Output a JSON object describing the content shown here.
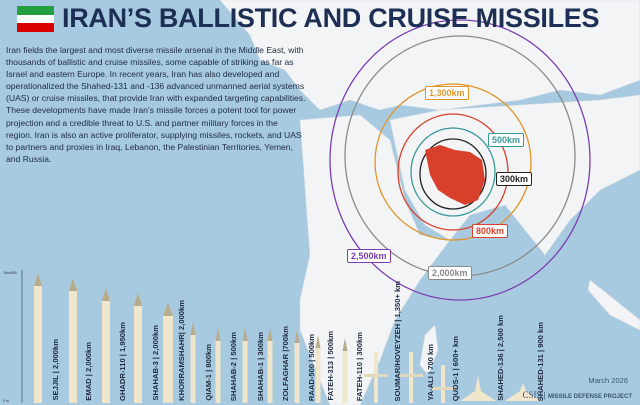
{
  "title": "IRAN’S BALLISTIC AND CRUISE MISSILES",
  "flag": {
    "colors": [
      "#239f40",
      "#ffffff",
      "#da0000"
    ]
  },
  "intro": "Iran fields the largest and most diverse missile arsenal in the Middle East, with thousands of ballistic and cruise missiles, some capable of striking as far as Israel and eastern Europe. In recent years, Iran has also developed and operationalized the Shahed-131 and -136 advanced unmanned aerial systems (UAS) or cruise missiles, that provide Iran with expanded targeting capabilities. These developments have made Iran’s missile forces a potent tool for power projection and a credible threat to U.S. and partner military forces in the region. Iran is also an active proliferator, supplying missiles, rockets, and UAS to partners and proxies in Iraq, Lebanon, the Palestinian Territories, Yemen, and Russia.",
  "ranges": [
    {
      "label": "300km",
      "color": "#222222"
    },
    {
      "label": "500km",
      "color": "#3a9a9a"
    },
    {
      "label": "800km",
      "color": "#d9402b"
    },
    {
      "label": "1,300km",
      "color": "#e0952a"
    },
    {
      "label": "2,000km",
      "color": "#8a8a8a"
    },
    {
      "label": "2,500km",
      "color": "#7b3fb0"
    }
  ],
  "scale": {
    "top": "18m/60ft",
    "bottom": "0 m"
  },
  "missiles": [
    {
      "label": "SEJJIL | 2,000km",
      "type": "ballistic"
    },
    {
      "label": "EMAD | 2,000km",
      "type": "ballistic"
    },
    {
      "label": "GHADR-110 | 1,950km",
      "type": "ballistic"
    },
    {
      "label": "SHAHAB-3 | 2,000km",
      "type": "ballistic"
    },
    {
      "label": "KHORRAMSHAHR| 2,000km",
      "type": "ballistic"
    },
    {
      "label": "QIAM-1 | 800km",
      "type": "ballistic"
    },
    {
      "label": "SHAHAB-2 | 500km",
      "type": "ballistic"
    },
    {
      "label": "SHAHAB-1 | 300km",
      "type": "ballistic"
    },
    {
      "label": "ZOLFAGHAR |700km",
      "type": "ballistic"
    },
    {
      "label": "RAAD-500 | 500km",
      "type": "ballistic"
    },
    {
      "label": "FATEH-313 | 500km",
      "type": "ballistic"
    },
    {
      "label": "FATEH-110 | 300km",
      "type": "ballistic"
    },
    {
      "label": "SOUMAR/HOVEYZEH | 1,350+ km",
      "type": "cruise"
    },
    {
      "label": "YA-ALI | 700 km",
      "type": "cruise"
    },
    {
      "label": "QUDS-1 | 600+ km",
      "type": "cruise"
    },
    {
      "label": "SHAHED-136 | 2,500 km",
      "type": "drone"
    },
    {
      "label": "SHAHED-131 | 900 km",
      "type": "drone"
    }
  ],
  "date": "March 2026",
  "logo": {
    "org": "CSIS",
    "project": "MISSILE DEFENSE PROJECT"
  }
}
